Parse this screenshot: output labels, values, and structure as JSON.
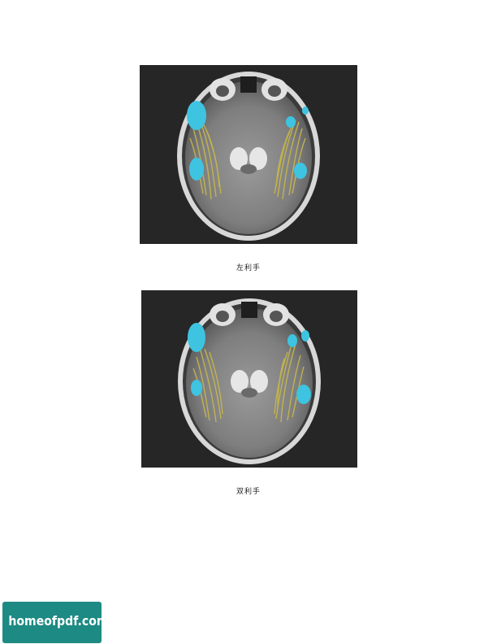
{
  "figures": [
    {
      "caption": "左利手",
      "image_alt": "axial brain MRI with yellow fiber tracts and blue activation regions"
    },
    {
      "caption": "双利手",
      "image_alt": "axial brain MRI with yellow fiber tracts and blue activation regions"
    }
  ],
  "watermark": {
    "text": "homeofpdf.com",
    "color": "#1d8a83"
  }
}
